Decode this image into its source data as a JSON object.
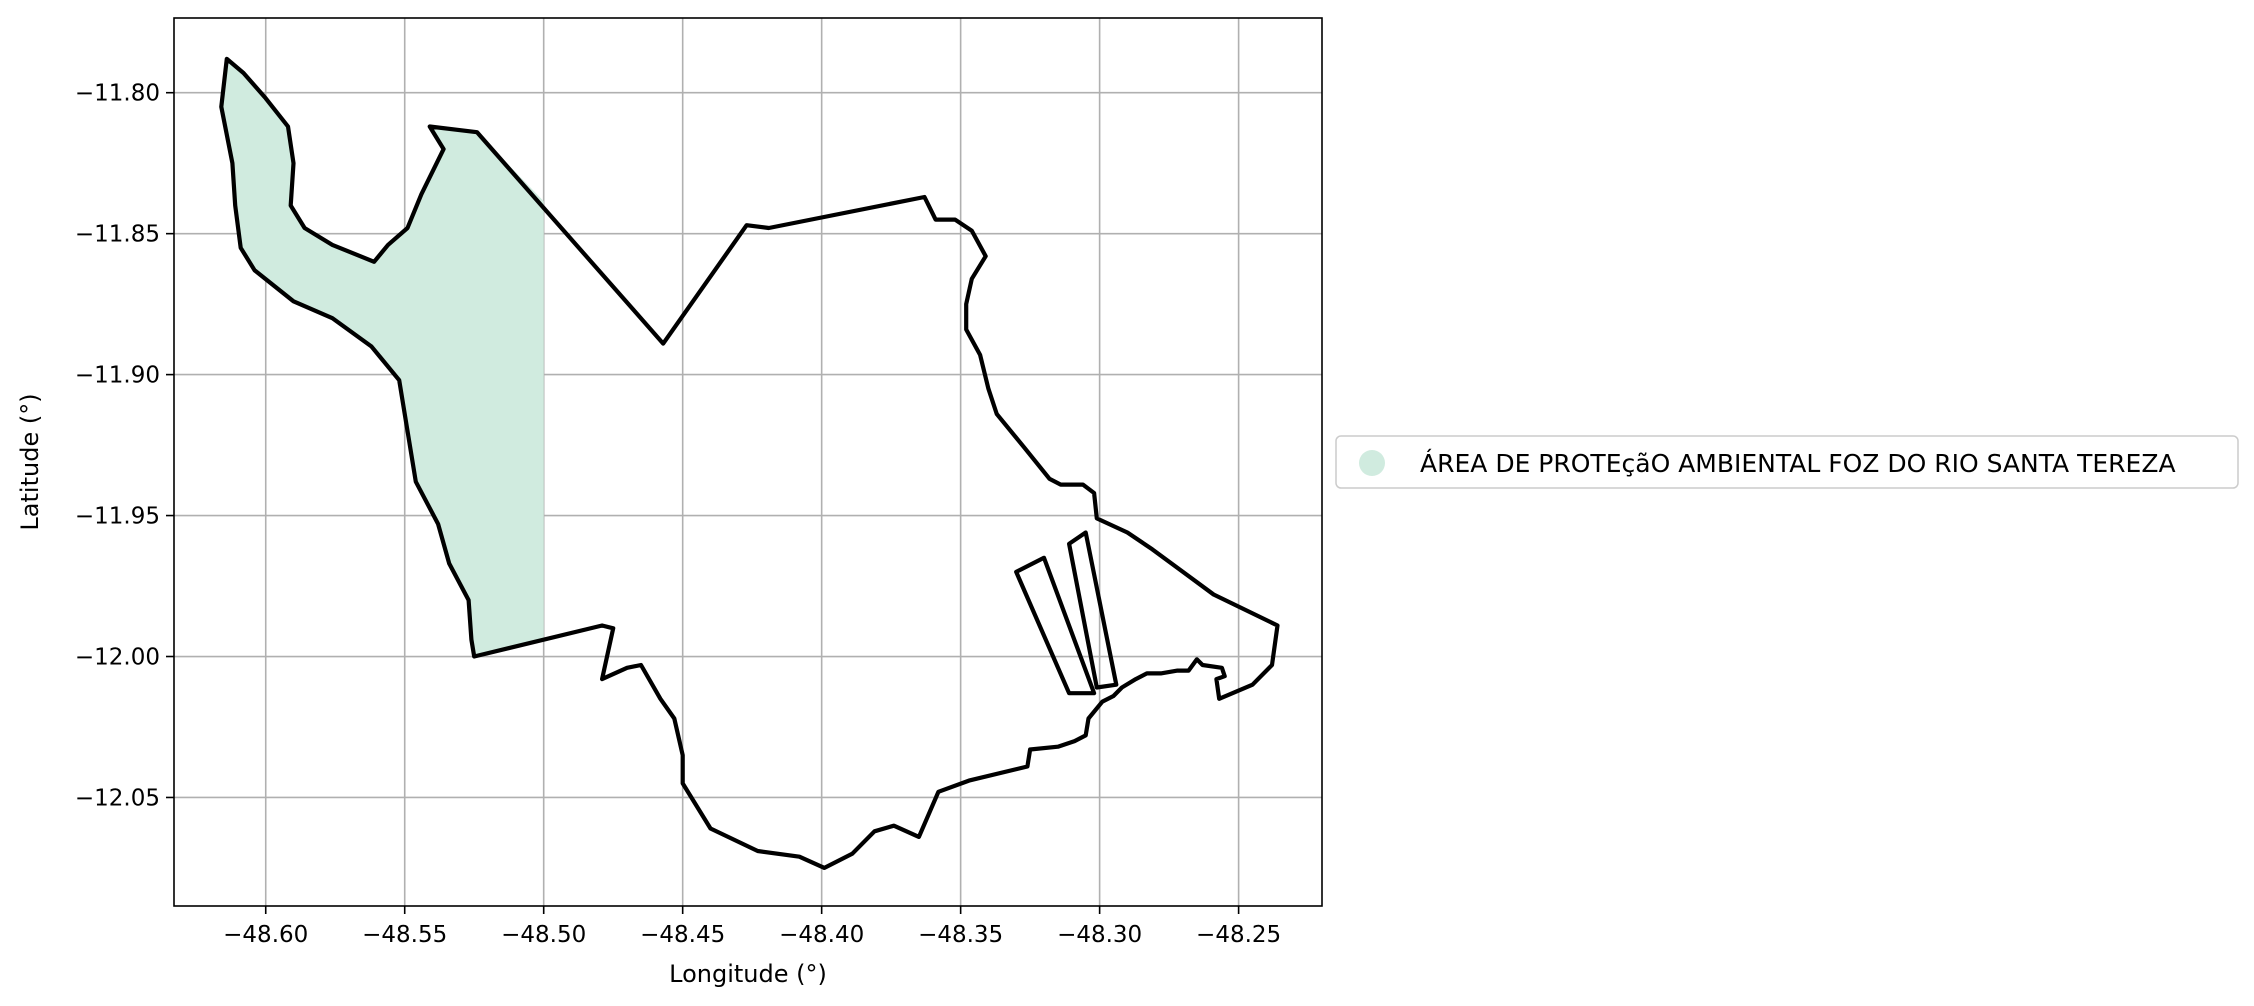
{
  "chart_data": {
    "type": "map",
    "xlabel": "Longitude (°)",
    "ylabel": "Latitude (°)",
    "xlim": [
      -48.633,
      -48.22
    ],
    "ylim": [
      -12.0885,
      -11.7735
    ],
    "grid": true,
    "x_ticks": [
      -48.6,
      -48.55,
      -48.5,
      -48.45,
      -48.4,
      -48.35,
      -48.3,
      -48.25
    ],
    "x_tick_labels": [
      "−48.60",
      "−48.55",
      "−48.50",
      "−48.45",
      "−48.40",
      "−48.35",
      "−48.30",
      "−48.25"
    ],
    "y_ticks": [
      -11.8,
      -11.85,
      -11.9,
      -11.95,
      -12.0,
      -12.05
    ],
    "y_tick_labels": [
      "−11.80",
      "−11.85",
      "−11.90",
      "−11.95",
      "−12.00",
      "−12.05"
    ],
    "legend": {
      "placement": "right",
      "entries": [
        {
          "label": "ÁREA DE PROTEçãO AMBIENTAL FOZ DO RIO SANTA TEREZA",
          "color": "#d0ebdf",
          "marker": "circle"
        }
      ]
    },
    "protected_area": {
      "name": "ÁREA DE PROTEçãO AMBIENTAL FOZ DO RIO SANTA TEREZA",
      "fill": "#d0ebdf",
      "polygon": [
        [
          -48.614,
          -11.788
        ],
        [
          -48.608,
          -11.793
        ],
        [
          -48.6,
          -11.802
        ],
        [
          -48.592,
          -11.812
        ],
        [
          -48.59,
          -11.825
        ],
        [
          -48.591,
          -11.84
        ],
        [
          -48.586,
          -11.848
        ],
        [
          -48.576,
          -11.854
        ],
        [
          -48.561,
          -11.86
        ],
        [
          -48.556,
          -11.854
        ],
        [
          -48.549,
          -11.848
        ],
        [
          -48.544,
          -11.836
        ],
        [
          -48.536,
          -11.82
        ],
        [
          -48.541,
          -11.812
        ],
        [
          -48.524,
          -11.814
        ],
        [
          -48.5,
          -11.8385
        ],
        [
          -48.5,
          -11.9945
        ],
        [
          -48.525,
          -12.0
        ],
        [
          -48.526,
          -11.994
        ],
        [
          -48.527,
          -11.98
        ],
        [
          -48.534,
          -11.967
        ],
        [
          -48.538,
          -11.953
        ],
        [
          -48.546,
          -11.938
        ],
        [
          -48.552,
          -11.902
        ],
        [
          -48.562,
          -11.89
        ],
        [
          -48.576,
          -11.88
        ],
        [
          -48.59,
          -11.874
        ],
        [
          -48.604,
          -11.863
        ],
        [
          -48.609,
          -11.855
        ],
        [
          -48.611,
          -11.84
        ],
        [
          -48.612,
          -11.825
        ],
        [
          -48.616,
          -11.805
        ]
      ]
    },
    "boundary_outer": {
      "stroke": "#000000",
      "polygon": [
        [
          -48.614,
          -11.788
        ],
        [
          -48.608,
          -11.793
        ],
        [
          -48.6,
          -11.802
        ],
        [
          -48.592,
          -11.812
        ],
        [
          -48.59,
          -11.825
        ],
        [
          -48.591,
          -11.84
        ],
        [
          -48.586,
          -11.848
        ],
        [
          -48.576,
          -11.854
        ],
        [
          -48.561,
          -11.86
        ],
        [
          -48.556,
          -11.854
        ],
        [
          -48.549,
          -11.848
        ],
        [
          -48.544,
          -11.836
        ],
        [
          -48.536,
          -11.82
        ],
        [
          -48.541,
          -11.812
        ],
        [
          -48.524,
          -11.814
        ],
        [
          -48.457,
          -11.889
        ],
        [
          -48.427,
          -11.847
        ],
        [
          -48.419,
          -11.848
        ],
        [
          -48.363,
          -11.837
        ],
        [
          -48.359,
          -11.845
        ],
        [
          -48.352,
          -11.845
        ],
        [
          -48.346,
          -11.849
        ],
        [
          -48.341,
          -11.858
        ],
        [
          -48.346,
          -11.866
        ],
        [
          -48.348,
          -11.875
        ],
        [
          -48.348,
          -11.884
        ],
        [
          -48.343,
          -11.893
        ],
        [
          -48.34,
          -11.905
        ],
        [
          -48.337,
          -11.914
        ],
        [
          -48.327,
          -11.926
        ],
        [
          -48.318,
          -11.937
        ],
        [
          -48.314,
          -11.939
        ],
        [
          -48.306,
          -11.939
        ],
        [
          -48.302,
          -11.942
        ],
        [
          -48.301,
          -11.951
        ],
        [
          -48.29,
          -11.956
        ],
        [
          -48.281,
          -11.962
        ],
        [
          -48.27,
          -11.97
        ],
        [
          -48.259,
          -11.978
        ],
        [
          -48.236,
          -11.989
        ],
        [
          -48.238,
          -12.003
        ],
        [
          -48.245,
          -12.01
        ],
        [
          -48.257,
          -12.015
        ],
        [
          -48.258,
          -12.008
        ],
        [
          -48.255,
          -12.007
        ],
        [
          -48.256,
          -12.004
        ],
        [
          -48.263,
          -12.003
        ],
        [
          -48.265,
          -12.001
        ],
        [
          -48.268,
          -12.005
        ],
        [
          -48.272,
          -12.005
        ],
        [
          -48.278,
          -12.006
        ],
        [
          -48.283,
          -12.006
        ],
        [
          -48.287,
          -12.008
        ],
        [
          -48.292,
          -12.011
        ],
        [
          -48.295,
          -12.014
        ],
        [
          -48.299,
          -12.016
        ],
        [
          -48.304,
          -12.022
        ],
        [
          -48.305,
          -12.028
        ],
        [
          -48.309,
          -12.03
        ],
        [
          -48.315,
          -12.032
        ],
        [
          -48.325,
          -12.033
        ],
        [
          -48.326,
          -12.039
        ],
        [
          -48.347,
          -12.044
        ],
        [
          -48.358,
          -12.048
        ],
        [
          -48.365,
          -12.064
        ],
        [
          -48.374,
          -12.06
        ],
        [
          -48.381,
          -12.062
        ],
        [
          -48.389,
          -12.07
        ],
        [
          -48.399,
          -12.075
        ],
        [
          -48.408,
          -12.071
        ],
        [
          -48.423,
          -12.069
        ],
        [
          -48.44,
          -12.061
        ],
        [
          -48.45,
          -12.045
        ],
        [
          -48.45,
          -12.035
        ],
        [
          -48.453,
          -12.022
        ],
        [
          -48.458,
          -12.015
        ],
        [
          -48.465,
          -12.003
        ],
        [
          -48.47,
          -12.004
        ],
        [
          -48.479,
          -12.008
        ],
        [
          -48.475,
          -11.99
        ],
        [
          -48.479,
          -11.989
        ],
        [
          -48.525,
          -12.0
        ],
        [
          -48.526,
          -11.994
        ],
        [
          -48.527,
          -11.98
        ],
        [
          -48.534,
          -11.967
        ],
        [
          -48.538,
          -11.953
        ],
        [
          -48.546,
          -11.938
        ],
        [
          -48.552,
          -11.902
        ],
        [
          -48.562,
          -11.89
        ],
        [
          -48.576,
          -11.88
        ],
        [
          -48.59,
          -11.874
        ],
        [
          -48.604,
          -11.863
        ],
        [
          -48.609,
          -11.855
        ],
        [
          -48.611,
          -11.84
        ],
        [
          -48.612,
          -11.825
        ],
        [
          -48.616,
          -11.805
        ]
      ]
    },
    "boundary_strips": [
      {
        "stroke": "#000000",
        "polygon": [
          [
            -48.33,
            -11.97
          ],
          [
            -48.32,
            -11.965
          ],
          [
            -48.302,
            -12.013
          ],
          [
            -48.311,
            -12.013
          ]
        ]
      },
      {
        "stroke": "#000000",
        "polygon": [
          [
            -48.305,
            -11.956
          ],
          [
            -48.311,
            -11.96
          ],
          [
            -48.301,
            -12.011
          ],
          [
            -48.294,
            -12.01
          ]
        ]
      }
    ]
  }
}
